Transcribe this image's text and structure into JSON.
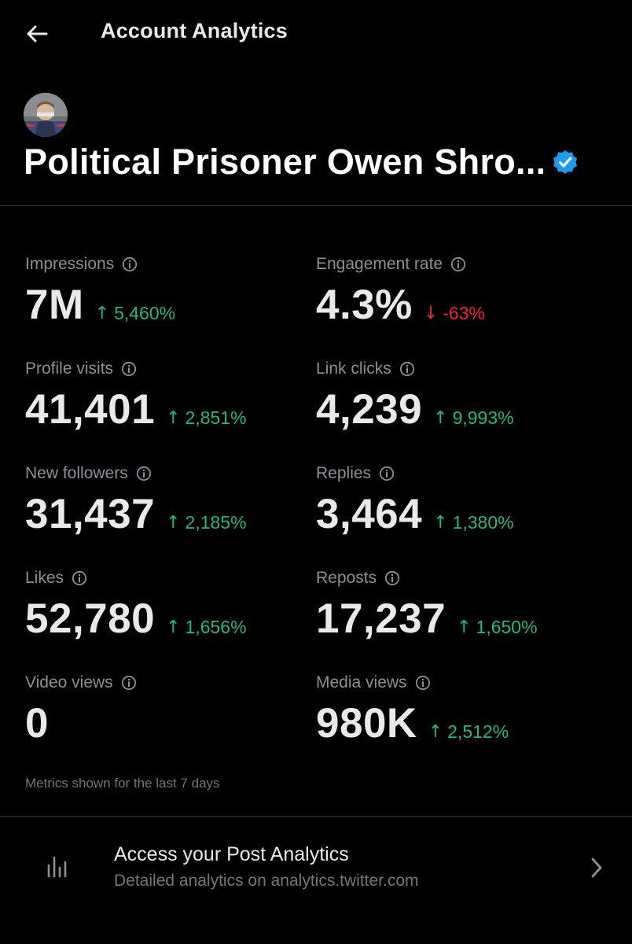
{
  "header": {
    "title": "Account Analytics",
    "back_icon": "arrow-left-icon"
  },
  "profile": {
    "name": "Political Prisoner Owen Shro...",
    "verified": true,
    "verified_icon": "verified-badge-icon"
  },
  "metrics": [
    {
      "label": "Impressions",
      "value": "7M",
      "change": "5,460%",
      "direction": "up"
    },
    {
      "label": "Engagement rate",
      "value": "4.3%",
      "change": "-63%",
      "direction": "down"
    },
    {
      "label": "Profile visits",
      "value": "41,401",
      "change": "2,851%",
      "direction": "up"
    },
    {
      "label": "Link clicks",
      "value": "4,239",
      "change": "9,993%",
      "direction": "up"
    },
    {
      "label": "New followers",
      "value": "31,437",
      "change": "2,185%",
      "direction": "up"
    },
    {
      "label": "Replies",
      "value": "3,464",
      "change": "1,380%",
      "direction": "up"
    },
    {
      "label": "Likes",
      "value": "52,780",
      "change": "1,656%",
      "direction": "up"
    },
    {
      "label": "Reposts",
      "value": "17,237",
      "change": "1,650%",
      "direction": "up"
    },
    {
      "label": "Video views",
      "value": "0",
      "change": "",
      "direction": "none"
    },
    {
      "label": "Media views",
      "value": "980K",
      "change": "2,512%",
      "direction": "up"
    }
  ],
  "footnote": "Metrics shown for the last 7 days",
  "post_analytics": {
    "title": "Access your Post Analytics",
    "subtitle": "Detailed analytics on analytics.twitter.com",
    "icon": "bar-chart-icon",
    "chevron_icon": "chevron-right-icon"
  },
  "colors": {
    "background": "#000000",
    "text": "#e7e9ea",
    "muted": "#8b9096",
    "up": "#21b978",
    "down": "#f4212e",
    "verified": "#1d9bf0",
    "divider": "#2f3336"
  }
}
